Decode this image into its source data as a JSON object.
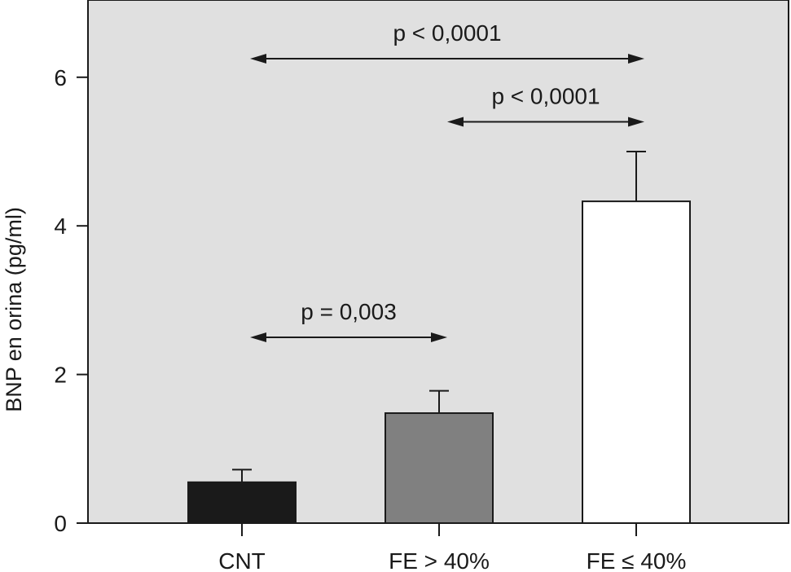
{
  "chart_data": {
    "type": "bar",
    "title": "",
    "xlabel": "",
    "ylabel": "BNP en orina (pg/ml)",
    "ylim": [
      0,
      7
    ],
    "yticks": [
      0,
      2,
      4,
      6
    ],
    "categories": [
      "CNT",
      "FE > 40%",
      "FE ≤ 40%"
    ],
    "values": [
      0.55,
      1.48,
      4.33
    ],
    "errors": [
      0.17,
      0.3,
      0.67
    ],
    "bar_colors": [
      "#1a1a1a",
      "#808080",
      "#ffffff"
    ],
    "background": "#e0e0e0",
    "grid": false,
    "comparisons": [
      {
        "from": 0,
        "to": 1,
        "label": "p = 0,003",
        "level": 2.5
      },
      {
        "from": 1,
        "to": 2,
        "label": "p < 0,0001",
        "level": 5.4
      },
      {
        "from": 0,
        "to": 2,
        "label": "p < 0,0001",
        "level": 6.25
      }
    ]
  }
}
